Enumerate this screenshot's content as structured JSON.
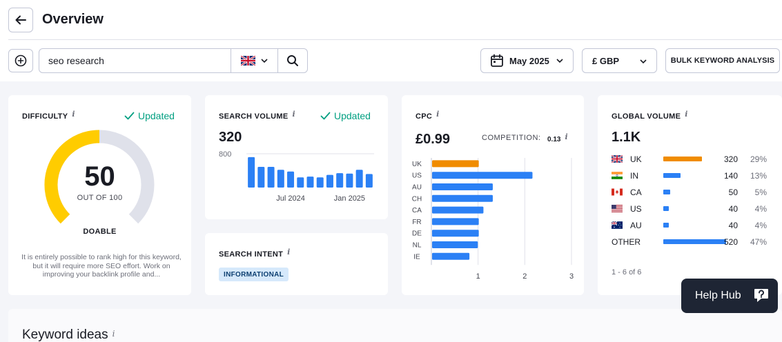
{
  "header": {
    "title": "Overview"
  },
  "search": {
    "value": "seo research",
    "placeholder": ""
  },
  "toolbar": {
    "date_label": "May 2025",
    "currency_label": "£ GBP",
    "bulk_label": "BULK KEYWORD ANALYSIS"
  },
  "difficulty": {
    "title": "DIFFICULTY",
    "info": "i",
    "status": "Updated",
    "value": "50",
    "score": 50,
    "max": 100,
    "sub": "OUT OF 100",
    "label": "DOABLE",
    "description": "It is entirely possible to rank high for this keyword, but it will require more SEO effort. Work on improving your backlink profile and..."
  },
  "volume": {
    "title": "SEARCH VOLUME",
    "info": "i",
    "status": "Updated",
    "value": "320",
    "chart_data": {
      "type": "bar",
      "y_tick_label": "800",
      "ylim": [
        0,
        800
      ],
      "values": [
        720,
        490,
        490,
        420,
        380,
        240,
        260,
        240,
        300,
        340,
        330,
        420,
        320
      ],
      "x_tick_labels": [
        "Jul 2024",
        "Jan 2025"
      ],
      "x_tick_index": [
        4,
        10
      ],
      "color": "#2b80f5"
    }
  },
  "intent": {
    "title": "SEARCH INTENT",
    "info": "i",
    "badge": "INFORMATIONAL"
  },
  "cpc": {
    "title": "CPC",
    "info": "i",
    "value": "£0.99",
    "competition_label": "COMPETITION:",
    "competition_value": "0.13",
    "competition_info": "i",
    "chart_data": {
      "type": "bar",
      "orientation": "horizontal",
      "categories": [
        "UK",
        "US",
        "AU",
        "CH",
        "CA",
        "FR",
        "DE",
        "NL",
        "IE"
      ],
      "values": [
        1.0,
        2.15,
        1.3,
        1.3,
        1.1,
        1.0,
        1.0,
        0.98,
        0.8
      ],
      "highlight_index": 0,
      "highlight_color": "#f08c00",
      "color": "#2b80f5",
      "x_ticks": [
        "1",
        "2",
        "3"
      ],
      "xlim": [
        0,
        3
      ]
    }
  },
  "global": {
    "title": "GLOBAL VOLUME",
    "info": "i",
    "value": "1.1K",
    "rows": [
      {
        "code": "UK",
        "flag": "uk-flag",
        "value": "320",
        "pct": "29%",
        "share": 29,
        "color": "#f08c00"
      },
      {
        "code": "IN",
        "flag": "india-flag",
        "value": "140",
        "pct": "13%",
        "share": 13,
        "color": "#2b80f5"
      },
      {
        "code": "CA",
        "flag": "canada-flag",
        "value": "50",
        "pct": "5%",
        "share": 5,
        "color": "#2b80f5"
      },
      {
        "code": "US",
        "flag": "us-flag",
        "value": "40",
        "pct": "4%",
        "share": 4,
        "color": "#2b80f5"
      },
      {
        "code": "AU",
        "flag": "australia-flag",
        "value": "40",
        "pct": "4%",
        "share": 4,
        "color": "#2b80f5"
      },
      {
        "code": "OTHER",
        "flag": "",
        "value": "520",
        "pct": "47%",
        "share": 47,
        "color": "#2b80f5"
      }
    ],
    "pager": "1 - 6 of 6"
  },
  "help": {
    "label": "Help Hub"
  },
  "ideas": {
    "title": "Keyword ideas",
    "info": "i"
  },
  "colors": {
    "accent": "#2b80f5",
    "highlight": "#f08c00",
    "gauge_fill": "#ffcc00",
    "gauge_track": "#dfe1ea",
    "success": "#009f81"
  },
  "icons": [
    "arrow-left-icon",
    "plus-circle-icon",
    "uk-flag-icon",
    "chevron-down-icon",
    "search-icon",
    "calendar-icon",
    "check-icon",
    "help-hub-icon"
  ]
}
